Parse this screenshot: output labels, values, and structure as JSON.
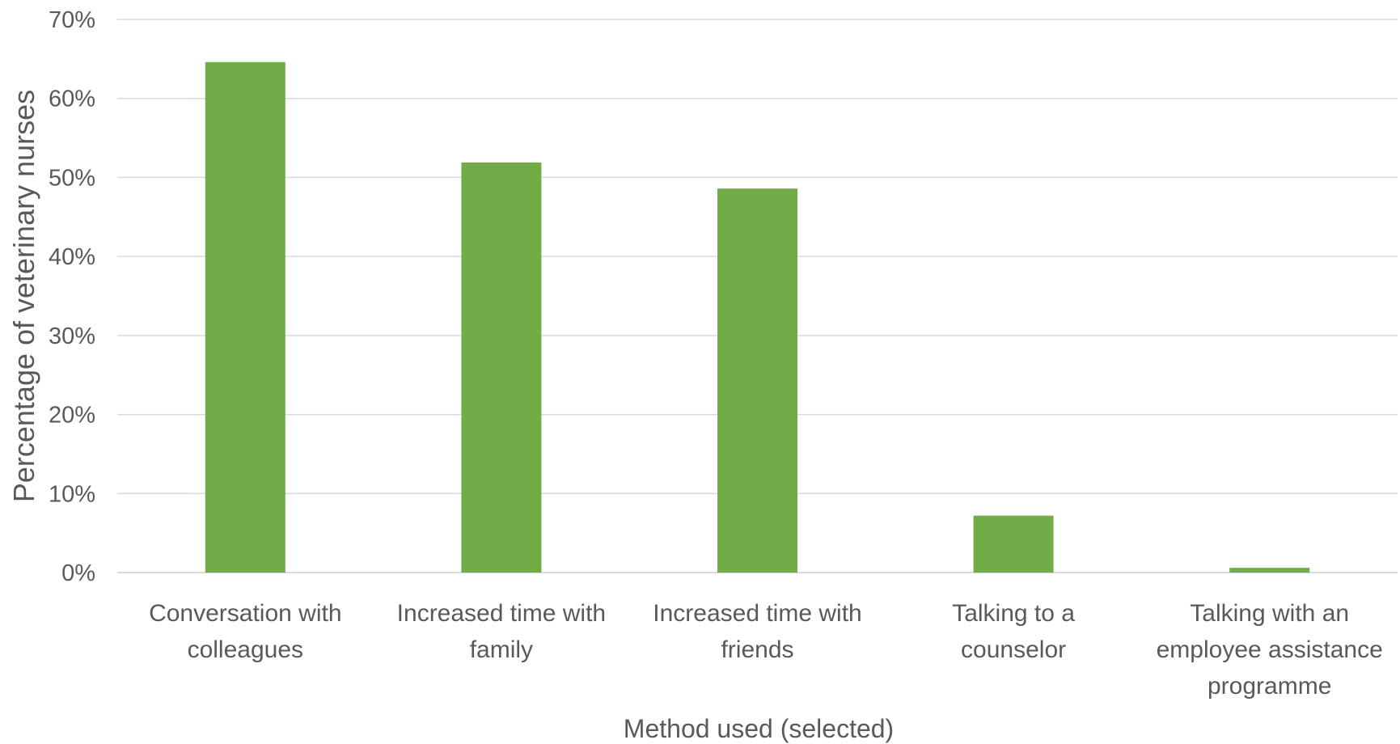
{
  "chart_data": {
    "type": "bar",
    "categories": [
      [
        "Conversation with",
        "colleagues"
      ],
      [
        "Increased time with",
        "family"
      ],
      [
        "Increased time with",
        "friends"
      ],
      [
        "Talking to a",
        "counselor"
      ],
      [
        "Talking with an",
        "employee assistance",
        "programme"
      ]
    ],
    "values": [
      64.6,
      51.9,
      48.6,
      7.2,
      0.6
    ],
    "xlabel": "Method used (selected)",
    "ylabel": "Percentage of veterinary nurses",
    "ylim": [
      0,
      70
    ],
    "yticks": [
      0,
      10,
      20,
      30,
      40,
      50,
      60,
      70
    ],
    "ytick_format": "{v}%",
    "grid": true,
    "legend": "none",
    "bar_color": "#70ad47",
    "grid_color": "#d9d9d9",
    "text_color": "#595959"
  }
}
